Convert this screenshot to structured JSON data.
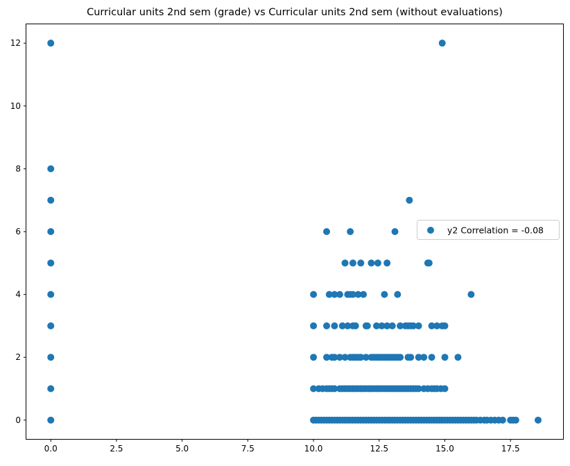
{
  "chart_data": {
    "type": "scatter",
    "title": "Curricular units 2nd sem (grade) vs Curricular units 2nd sem (without evaluations)",
    "xlabel": "",
    "ylabel": "",
    "xlim": [
      -0.93,
      19.5
    ],
    "ylim": [
      -0.6,
      12.6
    ],
    "xticks": [
      "0.0",
      "2.5",
      "5.0",
      "7.5",
      "10.0",
      "12.5",
      "15.0",
      "17.5"
    ],
    "xtick_values": [
      0,
      2.5,
      5,
      7.5,
      10,
      12.5,
      15,
      17.5
    ],
    "yticks": [
      "0",
      "2",
      "4",
      "6",
      "8",
      "10",
      "12"
    ],
    "ytick_values": [
      0,
      2,
      4,
      6,
      8,
      10,
      12
    ],
    "grid": false,
    "legend": {
      "position": "center-right",
      "entries": [
        "y2 Correlation = -0.08"
      ]
    },
    "series": [
      {
        "name": "y2 Correlation = -0.08",
        "color": "#1f77b4",
        "points": [
          [
            0,
            0
          ],
          [
            0,
            1
          ],
          [
            0,
            2
          ],
          [
            0,
            3
          ],
          [
            0,
            4
          ],
          [
            0,
            5
          ],
          [
            0,
            6
          ],
          [
            0,
            7
          ],
          [
            0,
            8
          ],
          [
            0,
            12
          ],
          [
            14.9,
            12
          ],
          [
            13.65,
            7
          ],
          [
            10.5,
            6
          ],
          [
            11.4,
            6
          ],
          [
            13.1,
            6
          ],
          [
            11.2,
            5
          ],
          [
            11.5,
            5
          ],
          [
            11.8,
            5
          ],
          [
            12.2,
            5
          ],
          [
            12.45,
            5
          ],
          [
            12.8,
            5
          ],
          [
            14.35,
            5
          ],
          [
            14.4,
            5
          ],
          [
            10,
            4
          ],
          [
            10.6,
            4
          ],
          [
            10.8,
            4
          ],
          [
            11,
            4
          ],
          [
            11.3,
            4
          ],
          [
            11.4,
            4
          ],
          [
            11.5,
            4
          ],
          [
            11.7,
            4
          ],
          [
            11.9,
            4
          ],
          [
            12.7,
            4
          ],
          [
            13.2,
            4
          ],
          [
            16,
            4
          ],
          [
            10,
            3
          ],
          [
            10.5,
            3
          ],
          [
            10.8,
            3
          ],
          [
            11.1,
            3
          ],
          [
            11.3,
            3
          ],
          [
            11.5,
            3
          ],
          [
            11.6,
            3
          ],
          [
            12,
            3
          ],
          [
            12.05,
            3
          ],
          [
            12.4,
            3
          ],
          [
            12.6,
            3
          ],
          [
            12.8,
            3
          ],
          [
            13,
            3
          ],
          [
            13.3,
            3
          ],
          [
            13.5,
            3
          ],
          [
            13.6,
            3
          ],
          [
            13.7,
            3
          ],
          [
            13.8,
            3
          ],
          [
            14,
            3
          ],
          [
            14.5,
            3
          ],
          [
            14.7,
            3
          ],
          [
            14.9,
            3
          ],
          [
            15,
            3
          ],
          [
            10,
            2
          ],
          [
            10.5,
            2
          ],
          [
            10.7,
            2
          ],
          [
            10.8,
            2
          ],
          [
            11,
            2
          ],
          [
            11.2,
            2
          ],
          [
            11.4,
            2
          ],
          [
            11.5,
            2
          ],
          [
            11.6,
            2
          ],
          [
            11.7,
            2
          ],
          [
            11.8,
            2
          ],
          [
            12,
            2
          ],
          [
            12.2,
            2
          ],
          [
            12.3,
            2
          ],
          [
            12.4,
            2
          ],
          [
            12.5,
            2
          ],
          [
            12.6,
            2
          ],
          [
            12.7,
            2
          ],
          [
            12.8,
            2
          ],
          [
            12.9,
            2
          ],
          [
            13,
            2
          ],
          [
            13.1,
            2
          ],
          [
            13.2,
            2
          ],
          [
            13.3,
            2
          ],
          [
            13.6,
            2
          ],
          [
            13.7,
            2
          ],
          [
            14,
            2
          ],
          [
            14.2,
            2
          ],
          [
            14.5,
            2
          ],
          [
            15,
            2
          ],
          [
            15.5,
            2
          ],
          [
            10,
            1
          ],
          [
            10.2,
            1
          ],
          [
            10.35,
            1
          ],
          [
            10.5,
            1
          ],
          [
            10.6,
            1
          ],
          [
            10.7,
            1
          ],
          [
            10.8,
            1
          ],
          [
            11,
            1
          ],
          [
            11.1,
            1
          ],
          [
            11.2,
            1
          ],
          [
            11.3,
            1
          ],
          [
            11.4,
            1
          ],
          [
            11.5,
            1
          ],
          [
            11.6,
            1
          ],
          [
            11.7,
            1
          ],
          [
            11.8,
            1
          ],
          [
            11.9,
            1
          ],
          [
            12,
            1
          ],
          [
            12.1,
            1
          ],
          [
            12.2,
            1
          ],
          [
            12.3,
            1
          ],
          [
            12.4,
            1
          ],
          [
            12.5,
            1
          ],
          [
            12.6,
            1
          ],
          [
            12.7,
            1
          ],
          [
            12.8,
            1
          ],
          [
            12.9,
            1
          ],
          [
            13,
            1
          ],
          [
            13.1,
            1
          ],
          [
            13.2,
            1
          ],
          [
            13.3,
            1
          ],
          [
            13.4,
            1
          ],
          [
            13.5,
            1
          ],
          [
            13.6,
            1
          ],
          [
            13.7,
            1
          ],
          [
            13.8,
            1
          ],
          [
            13.9,
            1
          ],
          [
            14,
            1
          ],
          [
            14.2,
            1
          ],
          [
            14.35,
            1
          ],
          [
            14.5,
            1
          ],
          [
            14.6,
            1
          ],
          [
            14.7,
            1
          ],
          [
            14.85,
            1
          ],
          [
            15,
            1
          ],
          [
            10,
            0
          ],
          [
            10.1,
            0
          ],
          [
            10.2,
            0
          ],
          [
            10.3,
            0
          ],
          [
            10.4,
            0
          ],
          [
            10.5,
            0
          ],
          [
            10.6,
            0
          ],
          [
            10.7,
            0
          ],
          [
            10.8,
            0
          ],
          [
            10.9,
            0
          ],
          [
            11,
            0
          ],
          [
            11.1,
            0
          ],
          [
            11.2,
            0
          ],
          [
            11.3,
            0
          ],
          [
            11.4,
            0
          ],
          [
            11.5,
            0
          ],
          [
            11.6,
            0
          ],
          [
            11.7,
            0
          ],
          [
            11.8,
            0
          ],
          [
            11.9,
            0
          ],
          [
            12,
            0
          ],
          [
            12.1,
            0
          ],
          [
            12.2,
            0
          ],
          [
            12.3,
            0
          ],
          [
            12.4,
            0
          ],
          [
            12.5,
            0
          ],
          [
            12.6,
            0
          ],
          [
            12.7,
            0
          ],
          [
            12.8,
            0
          ],
          [
            12.9,
            0
          ],
          [
            13,
            0
          ],
          [
            13.1,
            0
          ],
          [
            13.2,
            0
          ],
          [
            13.3,
            0
          ],
          [
            13.4,
            0
          ],
          [
            13.5,
            0
          ],
          [
            13.6,
            0
          ],
          [
            13.7,
            0
          ],
          [
            13.8,
            0
          ],
          [
            13.9,
            0
          ],
          [
            14,
            0
          ],
          [
            14.1,
            0
          ],
          [
            14.2,
            0
          ],
          [
            14.3,
            0
          ],
          [
            14.4,
            0
          ],
          [
            14.5,
            0
          ],
          [
            14.6,
            0
          ],
          [
            14.7,
            0
          ],
          [
            14.8,
            0
          ],
          [
            14.9,
            0
          ],
          [
            15,
            0
          ],
          [
            15.1,
            0
          ],
          [
            15.2,
            0
          ],
          [
            15.3,
            0
          ],
          [
            15.4,
            0
          ],
          [
            15.5,
            0
          ],
          [
            15.6,
            0
          ],
          [
            15.7,
            0
          ],
          [
            15.8,
            0
          ],
          [
            15.9,
            0
          ],
          [
            16,
            0
          ],
          [
            16.1,
            0
          ],
          [
            16.2,
            0
          ],
          [
            16.35,
            0
          ],
          [
            16.5,
            0
          ],
          [
            16.6,
            0
          ],
          [
            16.75,
            0
          ],
          [
            16.9,
            0
          ],
          [
            17.05,
            0
          ],
          [
            17.2,
            0
          ],
          [
            17.5,
            0
          ],
          [
            17.6,
            0
          ],
          [
            17.7,
            0
          ],
          [
            18.55,
            0
          ]
        ]
      }
    ]
  }
}
